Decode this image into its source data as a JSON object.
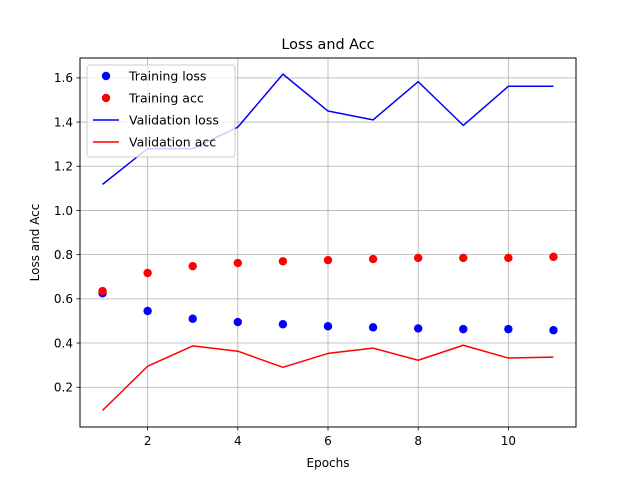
{
  "chart_data": {
    "type": "line",
    "title": "Loss and Acc",
    "xlabel": "Epochs",
    "ylabel": "Loss and Acc",
    "xlim": [
      0.5,
      11.5
    ],
    "ylim": [
      0.02,
      1.69
    ],
    "xticks": [
      2,
      4,
      6,
      8,
      10
    ],
    "yticks": [
      0.2,
      0.4,
      0.6,
      0.8,
      1.0,
      1.2,
      1.4,
      1.6
    ],
    "grid": true,
    "legend_position": "top-left",
    "x": [
      1,
      2,
      3,
      4,
      5,
      6,
      7,
      8,
      9,
      10,
      11
    ],
    "series": [
      {
        "name": "Training loss",
        "style": "points",
        "color": "#0000ff",
        "values": [
          0.625,
          0.545,
          0.51,
          0.495,
          0.485,
          0.476,
          0.471,
          0.466,
          0.463,
          0.463,
          0.458
        ]
      },
      {
        "name": "Training acc",
        "style": "points",
        "color": "#ff0000",
        "values": [
          0.635,
          0.717,
          0.748,
          0.762,
          0.77,
          0.775,
          0.78,
          0.785,
          0.785,
          0.785,
          0.79
        ]
      },
      {
        "name": "Validation loss",
        "style": "line",
        "color": "#0000ff",
        "values": [
          1.118,
          1.28,
          1.28,
          1.377,
          1.617,
          1.45,
          1.41,
          1.583,
          1.385,
          1.562,
          1.562
        ]
      },
      {
        "name": "Validation acc",
        "style": "line",
        "color": "#ff0000",
        "values": [
          0.095,
          0.295,
          0.387,
          0.363,
          0.29,
          0.353,
          0.377,
          0.322,
          0.39,
          0.332,
          0.336
        ]
      }
    ]
  }
}
